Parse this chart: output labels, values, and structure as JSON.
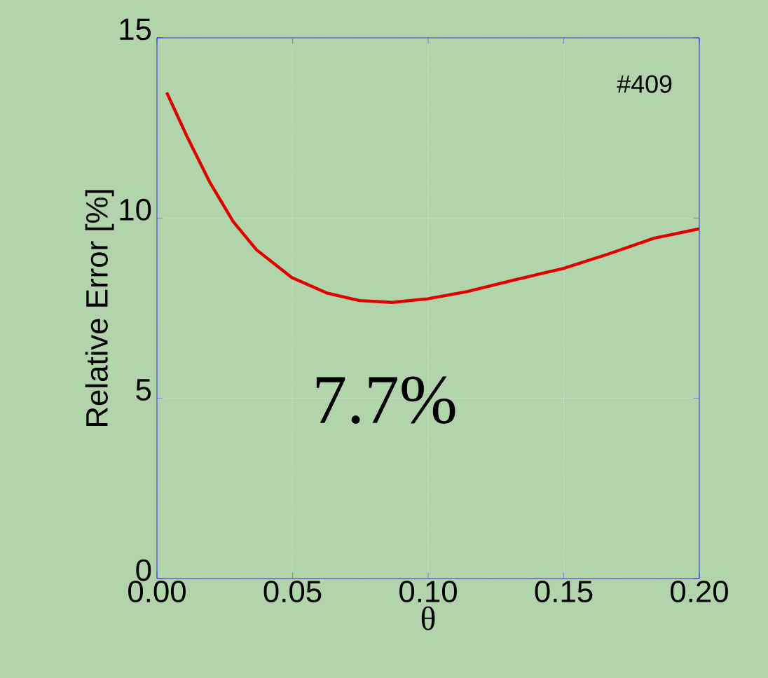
{
  "chart_data": {
    "type": "line",
    "xlabel": "θ",
    "ylabel": "Relative Error [%]",
    "x": [
      0.0036,
      0.0109,
      0.0195,
      0.0281,
      0.0367,
      0.0497,
      0.0626,
      0.0747,
      0.0867,
      0.0998,
      0.1143,
      0.1316,
      0.1498,
      0.166,
      0.1833,
      0.2
    ],
    "series": [
      {
        "color": "#e00000",
        "values": [
          13.48,
          12.29,
          10.99,
          9.9,
          9.12,
          8.35,
          7.92,
          7.71,
          7.66,
          7.76,
          7.96,
          8.28,
          8.6,
          8.99,
          9.44,
          9.7
        ]
      }
    ],
    "xlim": [
      0,
      0.2
    ],
    "ylim": [
      0,
      15
    ],
    "xticks": [
      {
        "value": 0,
        "label": "0.00"
      },
      {
        "value": 0.05,
        "label": "0.05"
      },
      {
        "value": 0.1,
        "label": "0.10"
      },
      {
        "value": 0.15,
        "label": "0.15"
      },
      {
        "value": 0.2,
        "label": "0.20"
      }
    ],
    "yticks": [
      0,
      5,
      10,
      15
    ],
    "grid": true,
    "marker": "none",
    "line_style": "solid",
    "annotations": [
      "#409",
      "7.7%"
    ]
  }
}
